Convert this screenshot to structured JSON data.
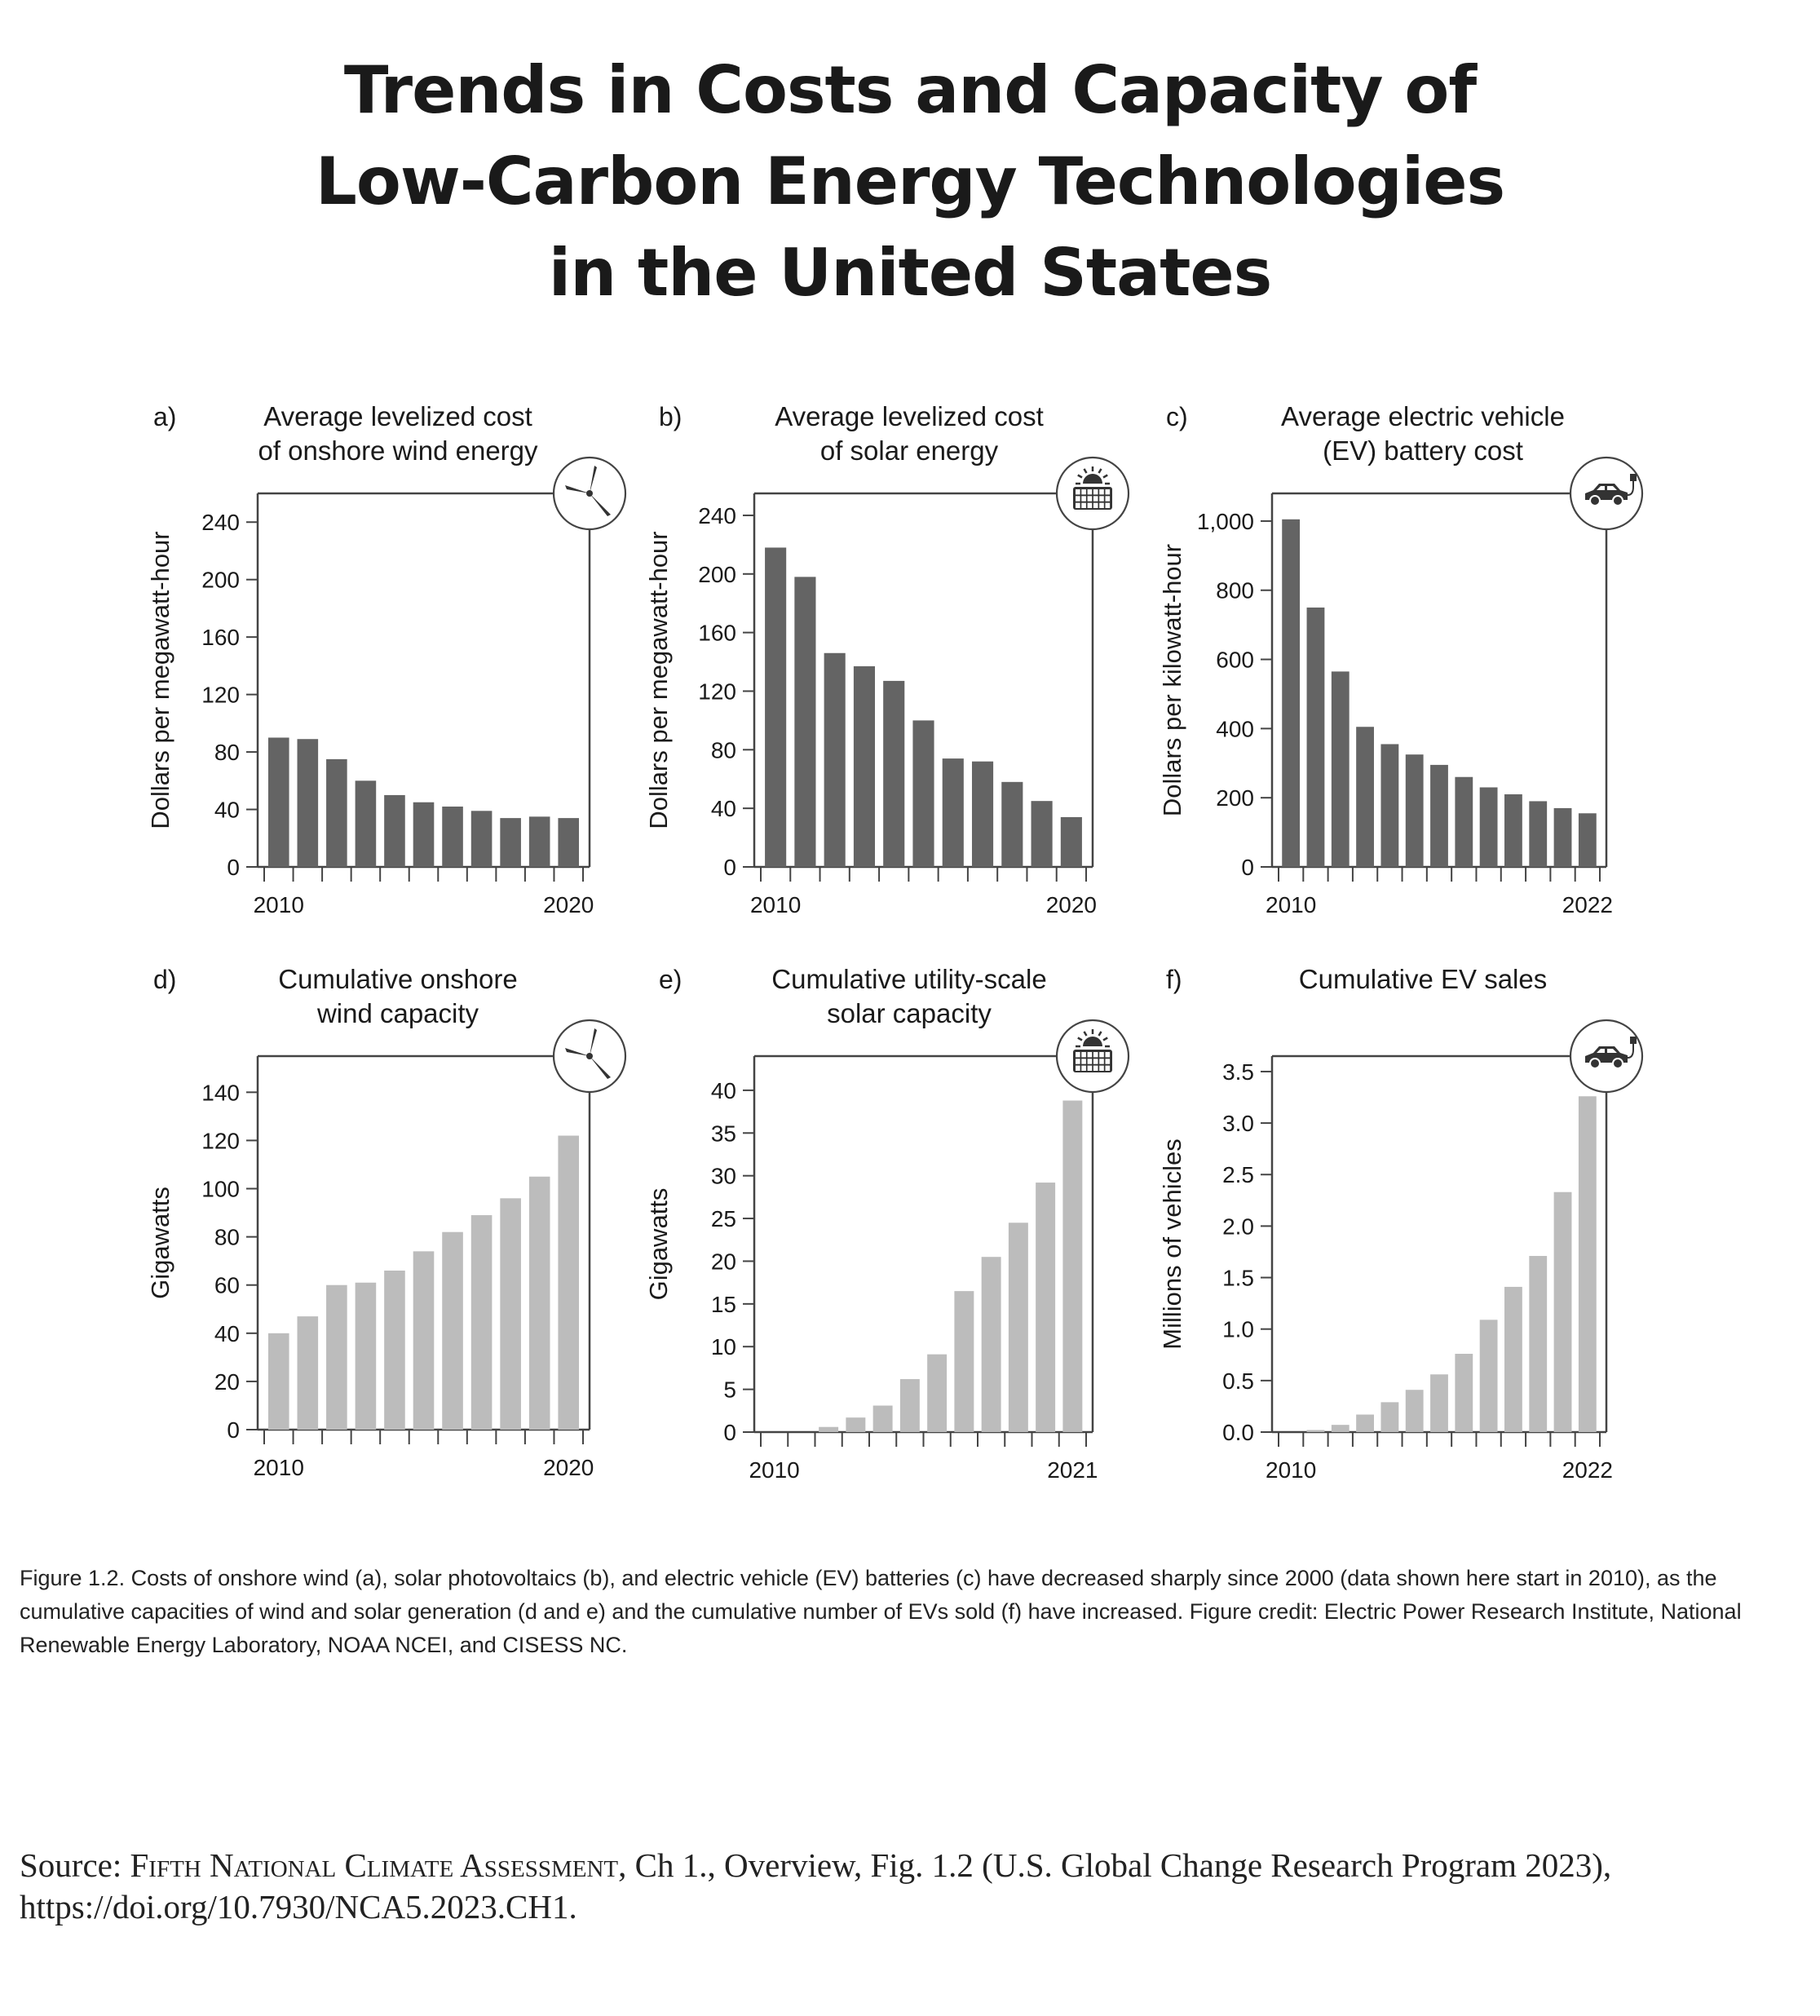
{
  "title_lines": [
    "Trends in Costs and Capacity of",
    "Low-Carbon Energy Technologies",
    "in the United States"
  ],
  "caption": "Figure 1.2. Costs of onshore wind (a), solar photovoltaics (b), and electric vehicle (EV) batteries (c) have decreased sharply since 2000 (data shown here start in 2010), as the cumulative capacities of wind and solar generation (d and e) and the cumulative number of EVs sold (f) have increased. Figure credit: Electric Power Research Institute, National Renewable Energy Laboratory, NOAA NCEI, and CISESS NC.",
  "source": {
    "prefix": "Source: ",
    "report": "Fifth National Climate Assessment",
    "rest": ", Ch 1., Overview, Fig. 1.2 (U.S. Global Change Research Program 2023), https://doi.org/10.7930/NCA5.2023.CH1."
  },
  "colors": {
    "cost_bars": "#646464",
    "capacity_bars": "#bcbcbc",
    "axis": "#444444",
    "text": "#1a1a1a"
  },
  "chart_data": [
    {
      "panel": "a)",
      "type": "bar",
      "title": "Average levelized cost\nof onshore wind energy",
      "ylabel": "Dollars per megawatt-hour",
      "icon": "wind-turbine-icon",
      "categories": [
        2010,
        2011,
        2012,
        2013,
        2014,
        2015,
        2016,
        2017,
        2018,
        2019,
        2020
      ],
      "x_tick_labels": [
        {
          "x": 2010,
          "label": "2010"
        },
        {
          "x": 2020,
          "label": "2020"
        }
      ],
      "values": [
        90,
        89,
        75,
        60,
        50,
        45,
        42,
        39,
        34,
        35,
        34
      ],
      "ylim": [
        0,
        260
      ],
      "yticks": [
        0,
        40,
        80,
        120,
        160,
        200,
        240
      ],
      "ytick_labels": [
        "0",
        "40",
        "80",
        "120",
        "160",
        "200",
        "240"
      ],
      "grid": false
    },
    {
      "panel": "b)",
      "type": "bar",
      "title": "Average levelized cost\nof solar energy",
      "ylabel": "Dollars per megawatt-hour",
      "icon": "solar-panel-icon",
      "categories": [
        2010,
        2011,
        2012,
        2013,
        2014,
        2015,
        2016,
        2017,
        2018,
        2019,
        2020
      ],
      "x_tick_labels": [
        {
          "x": 2010,
          "label": "2010"
        },
        {
          "x": 2020,
          "label": "2020"
        }
      ],
      "values": [
        218,
        198,
        146,
        137,
        127,
        100,
        74,
        72,
        58,
        45,
        34
      ],
      "ylim": [
        0,
        255
      ],
      "yticks": [
        0,
        40,
        80,
        120,
        160,
        200,
        240
      ],
      "ytick_labels": [
        "0",
        "40",
        "80",
        "120",
        "160",
        "200",
        "240"
      ],
      "grid": false
    },
    {
      "panel": "c)",
      "type": "bar",
      "title": "Average electric vehicle\n(EV) battery cost",
      "ylabel": "Dollars per kilowatt-hour",
      "icon": "electric-car-icon",
      "categories": [
        2010,
        2011,
        2012,
        2013,
        2014,
        2015,
        2016,
        2017,
        2018,
        2019,
        2020,
        2021,
        2022
      ],
      "x_tick_labels": [
        {
          "x": 2010,
          "label": "2010"
        },
        {
          "x": 2022,
          "label": "2022"
        }
      ],
      "values": [
        1005,
        750,
        565,
        405,
        355,
        325,
        295,
        260,
        230,
        210,
        190,
        170,
        155
      ],
      "ylim": [
        0,
        1080
      ],
      "yticks": [
        0,
        200,
        400,
        600,
        800,
        1000
      ],
      "ytick_labels": [
        "0",
        "200",
        "400",
        "600",
        "800",
        "1,000"
      ],
      "grid": false
    },
    {
      "panel": "d)",
      "type": "bar",
      "title": "Cumulative onshore\nwind capacity",
      "ylabel": "Gigawatts",
      "icon": "wind-turbine-icon",
      "categories": [
        2010,
        2011,
        2012,
        2013,
        2014,
        2015,
        2016,
        2017,
        2018,
        2019,
        2020
      ],
      "x_tick_labels": [
        {
          "x": 2010,
          "label": "2010"
        },
        {
          "x": 2020,
          "label": "2020"
        }
      ],
      "values": [
        40,
        47,
        60,
        61,
        66,
        74,
        82,
        89,
        96,
        105,
        122
      ],
      "ylim": [
        0,
        155
      ],
      "yticks": [
        0,
        20,
        40,
        60,
        80,
        100,
        120,
        140
      ],
      "ytick_labels": [
        "0",
        "20",
        "40",
        "60",
        "80",
        "100",
        "120",
        "140"
      ],
      "grid": false
    },
    {
      "panel": "e)",
      "type": "bar",
      "title": "Cumulative utility-scale\nsolar capacity",
      "ylabel": "Gigawatts",
      "icon": "solar-panel-icon",
      "categories": [
        2010,
        2011,
        2012,
        2013,
        2014,
        2015,
        2016,
        2017,
        2018,
        2019,
        2020,
        2021
      ],
      "x_tick_labels": [
        {
          "x": 2010,
          "label": "2010"
        },
        {
          "x": 2021,
          "label": "2021"
        }
      ],
      "values": [
        0,
        0,
        0.6,
        1.7,
        3.1,
        6.2,
        9.1,
        16.5,
        20.5,
        24.5,
        29.2,
        38.8
      ],
      "ylim": [
        0,
        44
      ],
      "yticks": [
        0,
        5,
        10,
        15,
        20,
        25,
        30,
        35,
        40
      ],
      "ytick_labels": [
        "0",
        "5",
        "10",
        "15",
        "20",
        "25",
        "30",
        "35",
        "40"
      ],
      "grid": false
    },
    {
      "panel": "f)",
      "type": "bar",
      "title": "Cumulative EV sales",
      "ylabel": "Millions of vehicles",
      "icon": "electric-car-icon",
      "categories": [
        2010,
        2011,
        2012,
        2013,
        2014,
        2015,
        2016,
        2017,
        2018,
        2019,
        2020,
        2021,
        2022
      ],
      "x_tick_labels": [
        {
          "x": 2010,
          "label": "2010"
        },
        {
          "x": 2022,
          "label": "2022"
        }
      ],
      "values": [
        0,
        0.02,
        0.07,
        0.17,
        0.29,
        0.41,
        0.56,
        0.76,
        1.09,
        1.41,
        1.71,
        2.33,
        3.26
      ],
      "ylim": [
        0,
        3.65
      ],
      "yticks": [
        0,
        0.5,
        1.0,
        1.5,
        2.0,
        2.5,
        3.0,
        3.5
      ],
      "ytick_labels": [
        "0.0",
        "0.5",
        "1.0",
        "1.5",
        "2.0",
        "2.5",
        "3.0",
        "3.5"
      ],
      "grid": false
    }
  ]
}
